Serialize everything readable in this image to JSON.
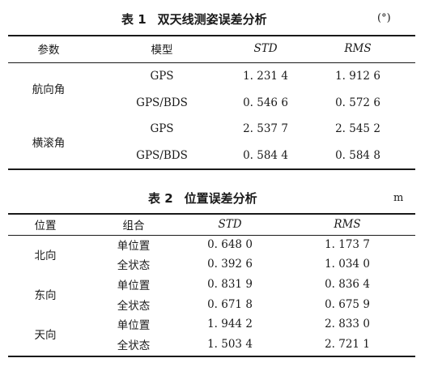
{
  "table1": {
    "caption_num": "表 1",
    "caption_title": "双天线测姿误差分析",
    "unit": "(°)",
    "headers": [
      "参数",
      "模型",
      "STD",
      "RMS"
    ],
    "groups": [
      {
        "param": "航向角",
        "rows": [
          {
            "model": "GPS",
            "std": "1. 231 4",
            "rms": "1. 912 6"
          },
          {
            "model": "GPS/BDS",
            "std": "0. 546 6",
            "rms": "0. 572 6"
          }
        ]
      },
      {
        "param": "横滚角",
        "rows": [
          {
            "model": "GPS",
            "std": "2. 537 7",
            "rms": "2. 545 2"
          },
          {
            "model": "GPS/BDS",
            "std": "0. 584 4",
            "rms": "0. 584 8"
          }
        ]
      }
    ]
  },
  "table2": {
    "caption_num": "表 2",
    "caption_title": "位置误差分析",
    "unit": "m",
    "headers": [
      "位置",
      "组合",
      "STD",
      "RMS"
    ],
    "groups": [
      {
        "position": "北向",
        "rows": [
          {
            "combo": "单位置",
            "std": "0. 648 0",
            "rms": "1. 173 7"
          },
          {
            "combo": "全状态",
            "std": "0. 392 6",
            "rms": "1. 034 0"
          }
        ]
      },
      {
        "position": "东向",
        "rows": [
          {
            "combo": "单位置",
            "std": "0. 831 9",
            "rms": "0. 836 4"
          },
          {
            "combo": "全状态",
            "std": "0. 671 8",
            "rms": "0. 675 9"
          }
        ]
      },
      {
        "position": "天向",
        "rows": [
          {
            "combo": "单位置",
            "std": "1. 944 2",
            "rms": "2. 833 0"
          },
          {
            "combo": "全状态",
            "std": "1. 503 4",
            "rms": "2. 721 1"
          }
        ]
      }
    ]
  }
}
